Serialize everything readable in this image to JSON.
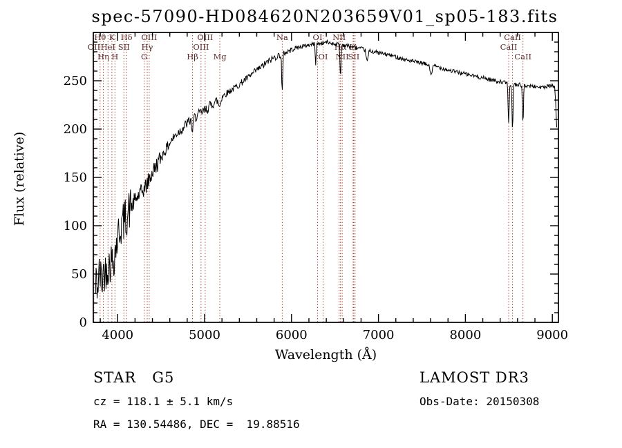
{
  "title": "spec-57090-HD084620N203659V01_sp05-183.fits",
  "chart_data": {
    "type": "line",
    "title": "spec-57090-HD084620N203659V01_sp05-183.fits",
    "xlabel": "Wavelength (Å)",
    "ylabel": "Flux (relative)",
    "xlim": [
      3720,
      9070
    ],
    "ylim": [
      0,
      300
    ],
    "xticks": [
      4000,
      5000,
      6000,
      7000,
      8000,
      9000
    ],
    "yticks": [
      0,
      50,
      100,
      150,
      200,
      250
    ],
    "x_minor_step": 200,
    "y_minor_step": 10,
    "grid": false,
    "frame_color": "#000000",
    "line_color": "#993322",
    "label_color": "#5a2a2a",
    "series": [
      {
        "name": "spectrum",
        "color": "#000000",
        "anchors": [
          [
            3740,
            25
          ],
          [
            3755,
            45
          ],
          [
            3770,
            35
          ],
          [
            3785,
            50
          ],
          [
            3800,
            48
          ],
          [
            3820,
            42
          ],
          [
            3840,
            55
          ],
          [
            3860,
            52
          ],
          [
            3880,
            60
          ],
          [
            3900,
            58
          ],
          [
            3920,
            64
          ],
          [
            3940,
            62
          ],
          [
            3960,
            70
          ],
          [
            3980,
            78
          ],
          [
            4000,
            88
          ],
          [
            4020,
            95
          ],
          [
            4040,
            100
          ],
          [
            4060,
            103
          ],
          [
            4080,
            106
          ],
          [
            4100,
            110
          ],
          [
            4130,
            116
          ],
          [
            4160,
            120
          ],
          [
            4200,
            126
          ],
          [
            4240,
            131
          ],
          [
            4280,
            135
          ],
          [
            4320,
            140
          ],
          [
            4360,
            147
          ],
          [
            4400,
            155
          ],
          [
            4450,
            163
          ],
          [
            4500,
            171
          ],
          [
            4550,
            178
          ],
          [
            4600,
            186
          ],
          [
            4650,
            192
          ],
          [
            4700,
            197
          ],
          [
            4750,
            201
          ],
          [
            4800,
            206
          ],
          [
            4850,
            210
          ],
          [
            4900,
            213
          ],
          [
            4950,
            216
          ],
          [
            5000,
            219
          ],
          [
            5050,
            223
          ],
          [
            5100,
            227
          ],
          [
            5150,
            230
          ],
          [
            5200,
            234
          ],
          [
            5250,
            237
          ],
          [
            5300,
            240
          ],
          [
            5350,
            243
          ],
          [
            5400,
            246
          ],
          [
            5450,
            250
          ],
          [
            5500,
            253
          ],
          [
            5550,
            257
          ],
          [
            5600,
            261
          ],
          [
            5650,
            264
          ],
          [
            5700,
            268
          ],
          [
            5750,
            271
          ],
          [
            5800,
            274
          ],
          [
            5850,
            276
          ],
          [
            5900,
            278
          ],
          [
            5950,
            280
          ],
          [
            6000,
            282
          ],
          [
            6050,
            284
          ],
          [
            6100,
            285
          ],
          [
            6150,
            286
          ],
          [
            6200,
            287
          ],
          [
            6250,
            288
          ],
          [
            6300,
            288
          ],
          [
            6350,
            289
          ],
          [
            6400,
            290
          ],
          [
            6450,
            289
          ],
          [
            6500,
            288
          ],
          [
            6550,
            288
          ],
          [
            6600,
            287
          ],
          [
            6650,
            286
          ],
          [
            6700,
            285
          ],
          [
            6750,
            284
          ],
          [
            6800,
            283
          ],
          [
            6850,
            282
          ],
          [
            6900,
            281
          ],
          [
            6950,
            280
          ],
          [
            7000,
            279
          ],
          [
            7100,
            277
          ],
          [
            7200,
            275
          ],
          [
            7300,
            272
          ],
          [
            7400,
            270
          ],
          [
            7500,
            268
          ],
          [
            7600,
            266
          ],
          [
            7700,
            264
          ],
          [
            7800,
            261
          ],
          [
            7900,
            259
          ],
          [
            8000,
            257
          ],
          [
            8100,
            255
          ],
          [
            8200,
            253
          ],
          [
            8300,
            251
          ],
          [
            8400,
            249
          ],
          [
            8500,
            247
          ],
          [
            8600,
            246
          ],
          [
            8700,
            245
          ],
          [
            8800,
            244
          ],
          [
            8900,
            243
          ],
          [
            8950,
            244
          ],
          [
            9000,
            245
          ],
          [
            9030,
            242
          ],
          [
            9055,
            192
          ]
        ]
      }
    ],
    "absorption_dips": [
      {
        "center": 4861,
        "depth": 14,
        "width": 8
      },
      {
        "center": 5172,
        "depth": 8,
        "width": 12
      },
      {
        "center": 5893,
        "depth": 40,
        "width": 6
      },
      {
        "center": 6278,
        "depth": 20,
        "width": 5
      },
      {
        "center": 6563,
        "depth": 34,
        "width": 6
      },
      {
        "center": 6870,
        "depth": 12,
        "width": 10
      },
      {
        "center": 7605,
        "depth": 9,
        "width": 12
      },
      {
        "center": 8498,
        "depth": 42,
        "width": 6
      },
      {
        "center": 8542,
        "depth": 48,
        "width": 6
      },
      {
        "center": 8662,
        "depth": 40,
        "width": 6
      }
    ],
    "noise_segments": [
      {
        "to": 4150,
        "amp": 22
      },
      {
        "to": 4500,
        "amp": 9
      },
      {
        "to": 5200,
        "amp": 5.5
      },
      {
        "to": 6000,
        "amp": 3.5
      },
      {
        "to": 9100,
        "amp": 2.2
      }
    ],
    "noise_seed": 42,
    "spectral_lines": [
      {
        "wavelength": 3727,
        "label": "OII",
        "row": 2
      },
      {
        "wavelength": 3798,
        "label": "Hθ",
        "row": 1
      },
      {
        "wavelength": 3835,
        "label": "Hη",
        "row": 3
      },
      {
        "wavelength": 3889,
        "label": "HeI",
        "row": 2
      },
      {
        "wavelength": 3934,
        "label": "K",
        "row": 1
      },
      {
        "wavelength": 3969,
        "label": "H",
        "row": 3
      },
      {
        "wavelength": 4072,
        "label": "SII",
        "row": 2
      },
      {
        "wavelength": 4102,
        "label": "Hδ",
        "row": 1
      },
      {
        "wavelength": 4305,
        "label": "G",
        "row": 3
      },
      {
        "wavelength": 4340,
        "label": "Hγ",
        "row": 2
      },
      {
        "wavelength": 4363,
        "label": "OIII",
        "row": 1
      },
      {
        "wavelength": 4861,
        "label": "Hβ",
        "row": 3
      },
      {
        "wavelength": 4959,
        "label": "OIII",
        "row": 2
      },
      {
        "wavelength": 5007,
        "label": "OIII",
        "row": 1
      },
      {
        "wavelength": 5175,
        "label": "Mg",
        "row": 3
      },
      {
        "wavelength": 5893,
        "label": "Na",
        "row": 1
      },
      {
        "wavelength": 6300,
        "label": "OI",
        "row": 1
      },
      {
        "wavelength": 6363,
        "label": "OI",
        "row": 3
      },
      {
        "wavelength": 6548,
        "label": "NII",
        "row": 1
      },
      {
        "wavelength": 6563,
        "label": "Hα",
        "row": 2
      },
      {
        "wavelength": 6583,
        "label": "NII",
        "row": 3
      },
      {
        "wavelength": 6708,
        "label": "Li",
        "row": 2
      },
      {
        "wavelength": 6716,
        "label": "SII",
        "row": 3
      },
      {
        "wavelength": 6731,
        "label": "",
        "row": 0
      },
      {
        "wavelength": 8498,
        "label": "CaII",
        "row": 2
      },
      {
        "wavelength": 8542,
        "label": "CaII",
        "row": 1
      },
      {
        "wavelength": 8662,
        "label": "CaII",
        "row": 3
      }
    ]
  },
  "annotations": {
    "star_class": "STAR   G5",
    "cz": "cz = 118.1 ± 5.1 km/s",
    "ra_dec": "RA = 130.54486, DEC =  19.88516",
    "survey": "LAMOST DR3",
    "obs_date": "Obs-Date: 20150308"
  }
}
